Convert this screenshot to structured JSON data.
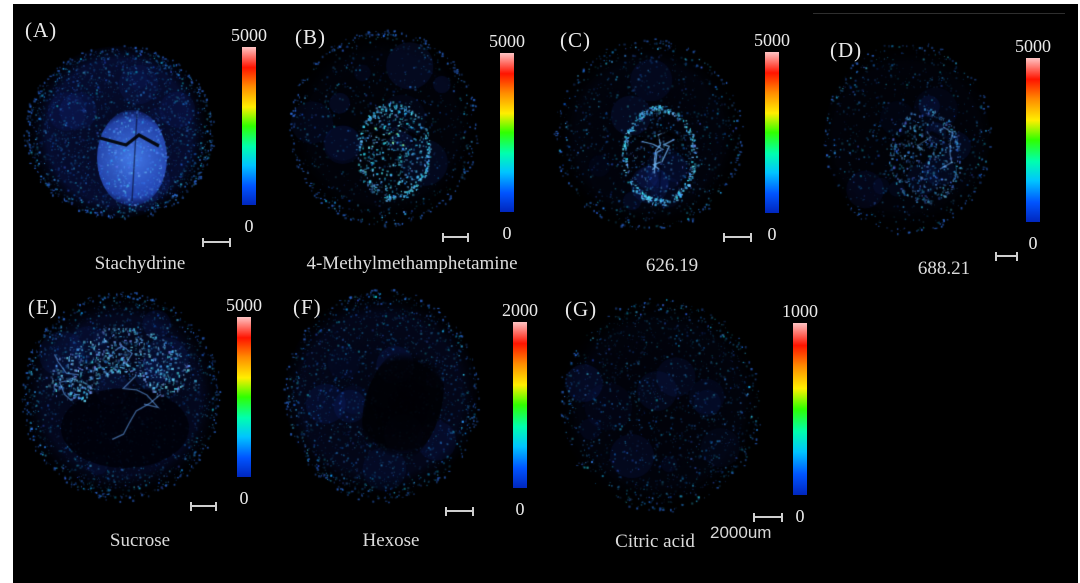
{
  "figure": {
    "page_background": "#ffffff",
    "figure_background": "#000000",
    "text_color": "#e9e9e9",
    "tissue_base_color": "#1430c8",
    "colorbar_gradient": [
      "#ffc4c4",
      "#ff1400",
      "#ff8a00",
      "#ffee00",
      "#30ff00",
      "#00ffae",
      "#00c4ff",
      "#0054ff",
      "#0026bd"
    ],
    "panels": [
      {
        "id": "A",
        "label": "(A)",
        "name": "Stachydrine",
        "scale_max": "5000",
        "scale_min": "0"
      },
      {
        "id": "B",
        "label": "(B)",
        "name": "4-Methylmethamphetamine",
        "scale_max": "5000",
        "scale_min": "0"
      },
      {
        "id": "C",
        "label": "(C)",
        "name": "626.19",
        "scale_max": "5000",
        "scale_min": "0"
      },
      {
        "id": "D",
        "label": "(D)",
        "name": "688.21",
        "scale_max": "5000",
        "scale_min": "0"
      },
      {
        "id": "E",
        "label": "(E)",
        "name": "Sucrose",
        "scale_max": "5000",
        "scale_min": "0"
      },
      {
        "id": "F",
        "label": "(F)",
        "name": "Hexose",
        "scale_max": "2000",
        "scale_min": "0"
      },
      {
        "id": "G",
        "label": "(G)",
        "name": "Citric acid",
        "scale_max": "1000",
        "scale_min": "0",
        "scalebar_label": "2000um"
      }
    ]
  }
}
